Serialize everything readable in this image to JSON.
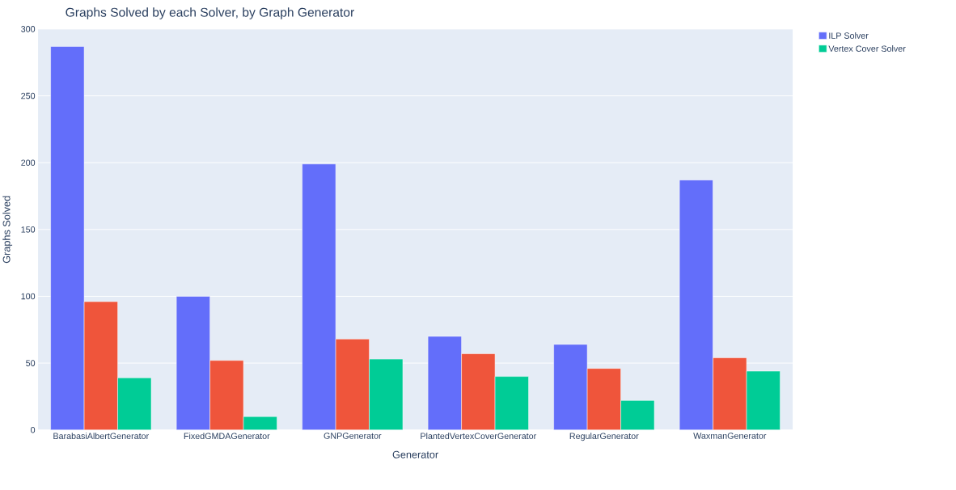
{
  "chart_data": {
    "type": "bar",
    "title": "Graphs Solved by each Solver, by Graph Generator",
    "xlabel": "Generator",
    "ylabel": "Graphs Solved",
    "categories": [
      "BarabasiAlbertGenerator",
      "FixedGMDAGenerator",
      "GNPGenerator",
      "PlantedVertexCoverGenerator",
      "RegularGenerator",
      "WaxmanGenerator"
    ],
    "series": [
      {
        "name": "ILP Solver",
        "color": "#636efa",
        "values": [
          287,
          100,
          199,
          70,
          64,
          187
        ]
      },
      {
        "color": "#ef553b",
        "values": [
          96,
          52,
          68,
          57,
          46,
          54
        ]
      },
      {
        "name": "Vertex Cover Solver",
        "color": "#00cc96",
        "values": [
          39,
          10,
          53,
          40,
          22,
          44
        ]
      }
    ],
    "ylim": [
      0,
      300
    ],
    "yticks": [
      0,
      50,
      100,
      150,
      200,
      250,
      300
    ],
    "grid": "y",
    "legend": "top right"
  }
}
